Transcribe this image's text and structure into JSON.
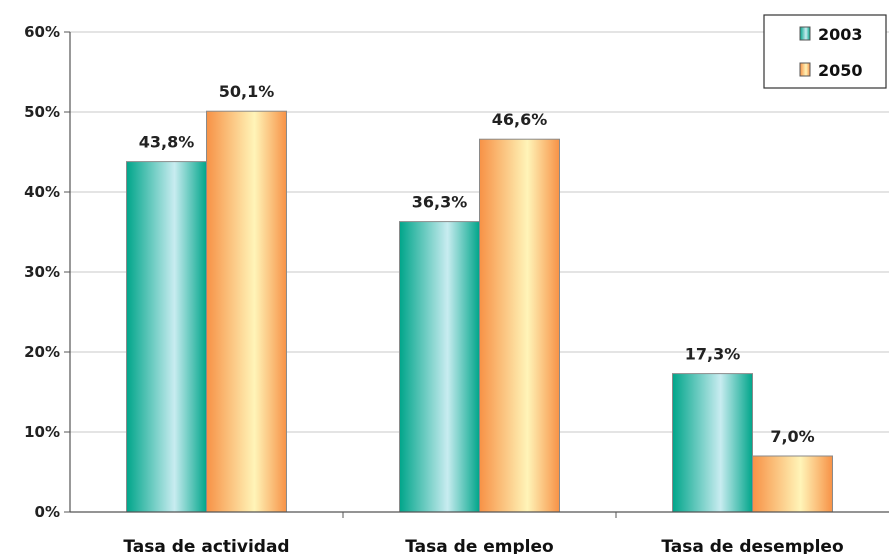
{
  "chart_data": {
    "type": "bar",
    "categories": [
      "Tasa de actividad",
      "Tasa de empleo",
      "Tasa de desempleo"
    ],
    "series": [
      {
        "name": "2003",
        "values": [
          43.8,
          36.3,
          17.3
        ],
        "labels": [
          "43,8%",
          "36,3%",
          "17,3%"
        ]
      },
      {
        "name": "2050",
        "values": [
          50.1,
          46.6,
          7.0
        ],
        "labels": [
          "50,1%",
          "46,6%",
          "7,0%"
        ]
      }
    ],
    "ylim": [
      0,
      60
    ],
    "yticks": [
      0,
      10,
      20,
      30,
      40,
      50,
      60
    ],
    "ytick_labels": [
      "0%",
      "10%",
      "20%",
      "30%",
      "40%",
      "50%",
      "60%"
    ],
    "grid": "horizontal",
    "legend": "top-right",
    "colors": {
      "2003": {
        "edge": "#00a58a",
        "center": "#c8ecf0"
      },
      "2050": {
        "edge": "#f79246",
        "center": "#fff4b8"
      },
      "grid": "#c8c8c8",
      "axis": "#555555"
    }
  }
}
